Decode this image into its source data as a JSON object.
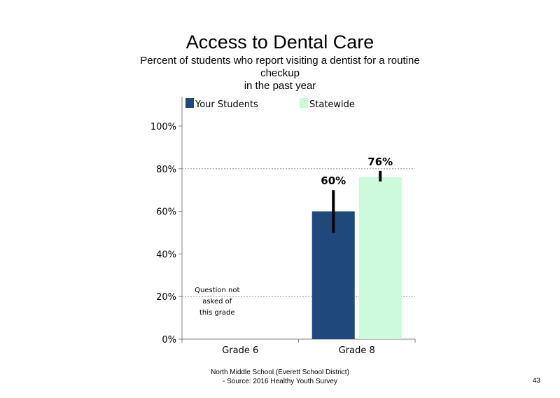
{
  "title": "Access to Dental Care",
  "subtitle": {
    "line1": "Percent of students who report visiting a dentist for a routine",
    "line2": "checkup",
    "line3": "in the past year"
  },
  "footer": {
    "line1": "North Middle School (Everett School District)",
    "line2": "- Source: 2016 Healthy Youth Survey"
  },
  "page_number": "43",
  "chart_data": {
    "type": "bar",
    "categories": [
      "Grade 6",
      "Grade 8"
    ],
    "series": [
      {
        "name": "Your Students",
        "color": "#1f497d",
        "values": [
          null,
          60
        ],
        "labels": [
          "",
          "60%"
        ],
        "error_bars": [
          null,
          [
            50,
            70
          ]
        ]
      },
      {
        "name": "Statewide",
        "color": "#ccfadb",
        "values": [
          null,
          76
        ],
        "labels": [
          "",
          "76%"
        ],
        "error_bars": [
          null,
          [
            74,
            79
          ]
        ]
      }
    ],
    "ylim": [
      0,
      100
    ],
    "yticks": [
      "0%",
      "20%",
      "40%",
      "60%",
      "80%",
      "100%"
    ],
    "gridlines": [
      20,
      80
    ],
    "annotation": {
      "category": "Grade 6",
      "lines": [
        "Question not",
        "asked of",
        "this grade"
      ]
    },
    "legend": "top"
  }
}
